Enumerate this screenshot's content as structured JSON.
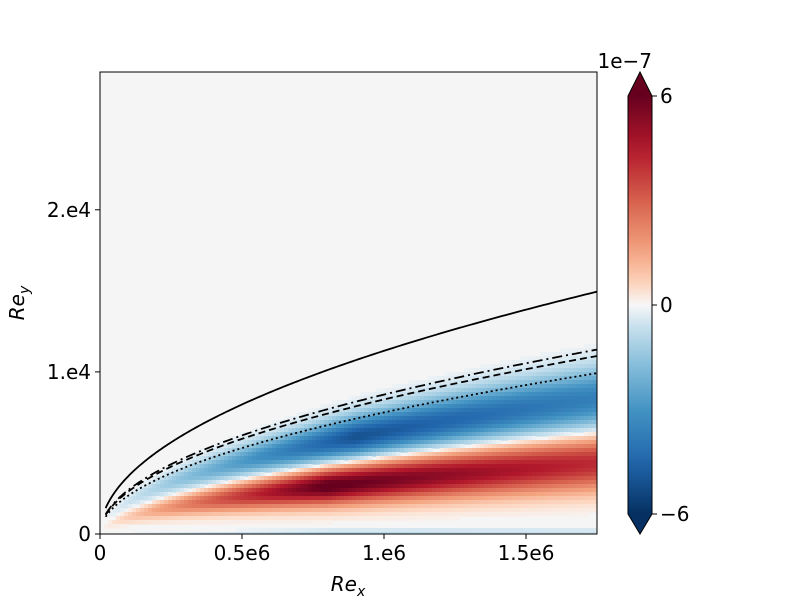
{
  "chart_data": {
    "type": "heatmap",
    "title": "",
    "xlabel": "Re",
    "xlabel_sub": "x",
    "ylabel": "Re",
    "ylabel_sub": "y",
    "xlim": [
      0,
      1750000
    ],
    "ylim": [
      0,
      28500
    ],
    "x_ticks": [
      {
        "value": 0,
        "label": "0"
      },
      {
        "value": 500000,
        "label": "0.5e6"
      },
      {
        "value": 1000000,
        "label": "1.e6"
      },
      {
        "value": 1500000,
        "label": "1.5e6"
      }
    ],
    "y_ticks": [
      {
        "value": 0,
        "label": "0"
      },
      {
        "value": 10000,
        "label": "1.e4"
      },
      {
        "value": 20000,
        "label": "2.e4"
      }
    ],
    "colorbar": {
      "colormap": "RdBu_r",
      "multiplier_label": "1e−7",
      "range": [
        -6,
        6
      ],
      "ticks": [
        {
          "value": 6,
          "label": "6"
        },
        {
          "value": 0,
          "label": "0"
        },
        {
          "value": -6,
          "label": "−6"
        }
      ],
      "extend": "both",
      "low_color": "#053061",
      "high_color": "#67001f"
    },
    "field": {
      "negative_band": {
        "center_coef": 6.3,
        "width_coef": 1.4,
        "peak_x": 900000,
        "peak": -0.85
      },
      "positive_band": {
        "center_coef": 3.3,
        "width_coef": 1.25,
        "peak_x": 800000,
        "peak": 1.05
      },
      "wall_band": {
        "peak": -0.15
      }
    },
    "curves": [
      {
        "name": "solid",
        "style": "solid",
        "coef": 11.3,
        "offset": 0
      },
      {
        "name": "dashdot",
        "style": "dashdot",
        "coef": 8.6,
        "offset": 0
      },
      {
        "name": "dashed",
        "style": "dashed",
        "coef": 8.3,
        "offset": 0
      },
      {
        "name": "dotted",
        "style": "dotted",
        "coef": 7.5,
        "offset": 0
      }
    ]
  }
}
